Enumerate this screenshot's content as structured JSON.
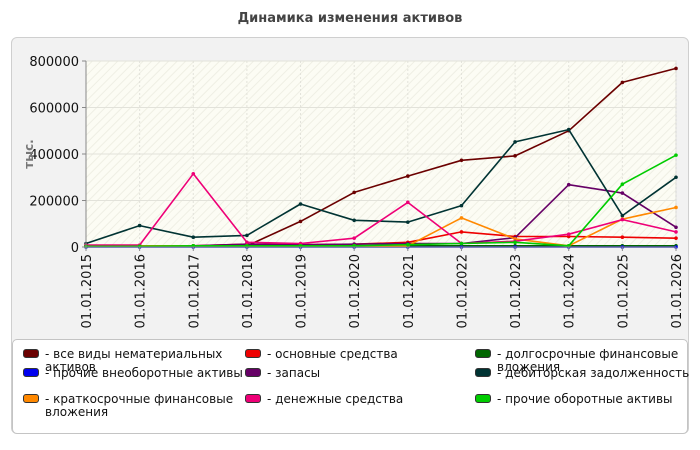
{
  "chart_data": {
    "type": "line",
    "title": "Динамика изменения активов",
    "ylabel": "тыс.",
    "xlabel": "",
    "ylim": [
      0,
      800000
    ],
    "yticks": [
      0,
      200000,
      400000,
      600000,
      800000
    ],
    "categories": [
      "01.01.2015",
      "01.01.2016",
      "01.01.2017",
      "01.01.2018",
      "01.01.2019",
      "01.01.2020",
      "01.01.2021",
      "01.01.2022",
      "01.01.2023",
      "01.01.2024",
      "01.01.2025",
      "01.01.2026"
    ],
    "grid": true,
    "legend_position": "bottom",
    "series": [
      {
        "name": "- все виды нематериальных активов",
        "color": "#6b0000",
        "values": [
          5000,
          5000,
          5000,
          5000,
          110000,
          235000,
          305000,
          373000,
          392000,
          500000,
          708000,
          768000
        ]
      },
      {
        "name": "- основные средства",
        "color": "#ee0000",
        "values": [
          5000,
          5000,
          5000,
          12000,
          10000,
          12000,
          20000,
          65000,
          45000,
          45000,
          42000,
          38000
        ]
      },
      {
        "name": "- долгосрочные финансовые вложения",
        "color": "#006600",
        "values": [
          5000,
          5000,
          5000,
          5000,
          5000,
          5000,
          5000,
          5000,
          5000,
          5000,
          5000,
          5000
        ]
      },
      {
        "name": "- прочие внеоборотные активы",
        "color": "#0000ee",
        "values": [
          0,
          0,
          0,
          0,
          0,
          0,
          0,
          0,
          0,
          0,
          0,
          0
        ]
      },
      {
        "name": "- запасы",
        "color": "#660066",
        "values": [
          5000,
          5000,
          5000,
          12000,
          10000,
          12000,
          15000,
          15000,
          40000,
          268000,
          232000,
          85000
        ]
      },
      {
        "name": "- дебиторская задолженность",
        "color": "#003333",
        "values": [
          15000,
          92000,
          42000,
          50000,
          185000,
          115000,
          107000,
          178000,
          452000,
          505000,
          135000,
          300000
        ]
      },
      {
        "name": "- краткосрочные финансовые вложения",
        "color": "#ff8800",
        "values": [
          5000,
          5000,
          5000,
          5000,
          5000,
          5000,
          5000,
          125000,
          35000,
          5000,
          120000,
          170000
        ]
      },
      {
        "name": "- денежные средства",
        "color": "#ee0077",
        "values": [
          8000,
          8000,
          315000,
          20000,
          15000,
          38000,
          192000,
          15000,
          25000,
          55000,
          118000,
          65000
        ]
      },
      {
        "name": "- прочие оборотные активы",
        "color": "#00cc00",
        "values": [
          3000,
          3000,
          5000,
          5000,
          5000,
          5000,
          10000,
          15000,
          20000,
          5000,
          270000,
          395000
        ]
      }
    ]
  }
}
